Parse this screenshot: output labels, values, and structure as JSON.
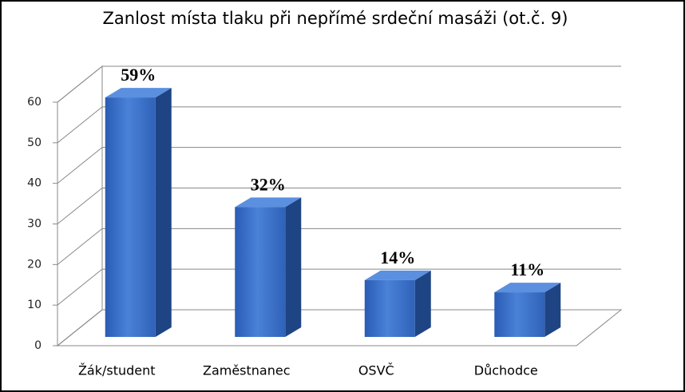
{
  "chart_data": {
    "type": "bar3d",
    "title": "Zanlost místa tlaku při nepřímé srdeční masáži (ot.č. 9)",
    "categories": [
      "Žák/student",
      "Zaměstnanec",
      "OSVČ",
      "Důchodce"
    ],
    "values": [
      59,
      32,
      14,
      11
    ],
    "value_labels": [
      "59%",
      "32%",
      "14%",
      "11%"
    ],
    "color": "#3366cc",
    "ylim": [
      0,
      60
    ],
    "yticks": [
      0,
      10,
      20,
      30,
      40,
      50,
      60
    ],
    "grid": true
  }
}
